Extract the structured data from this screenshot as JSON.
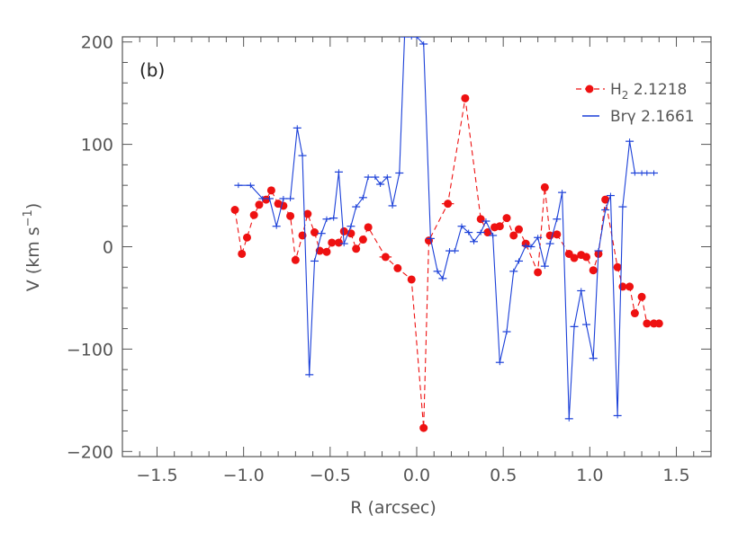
{
  "chart_data": {
    "type": "line",
    "panel_label": "(b)",
    "xlabel": "R (arcsec)",
    "ylabel": {
      "main": "V (km s",
      "sup": "−1",
      "close": ")"
    },
    "xlim": [
      -1.7,
      1.7
    ],
    "ylim": [
      -205,
      205
    ],
    "x_ticks": [
      -1.5,
      -1.0,
      -0.5,
      0.0,
      0.5,
      1.0,
      1.5
    ],
    "x_tick_labels": [
      "−1.5",
      "−1.0",
      "−0.5",
      "0.0",
      "0.5",
      "1.0",
      "1.5"
    ],
    "y_ticks": [
      -200,
      -100,
      0,
      100,
      200
    ],
    "y_tick_labels": [
      "−200",
      "−100",
      "0",
      "100",
      "200"
    ],
    "legend": [
      {
        "name": "H",
        "sub": "2",
        "rest": " 2.1218",
        "series": "h2"
      },
      {
        "name": "Brγ",
        "sub": "",
        "rest": " 2.1661",
        "series": "brg"
      }
    ],
    "series": [
      {
        "id": "h2",
        "name": "H2 2.1218",
        "color": "#ee1111",
        "style": "dashed",
        "marker": "circle",
        "x": [
          -1.05,
          -1.01,
          -0.98,
          -0.94,
          -0.91,
          -0.87,
          -0.84,
          -0.8,
          -0.77,
          -0.73,
          -0.7,
          -0.66,
          -0.63,
          -0.59,
          -0.56,
          -0.52,
          -0.49,
          -0.45,
          -0.42,
          -0.38,
          -0.35,
          -0.31,
          -0.28,
          -0.18,
          -0.11,
          -0.03,
          0.04,
          0.07,
          0.18,
          0.28,
          0.37,
          0.41,
          0.45,
          0.48,
          0.52,
          0.56,
          0.59,
          0.63,
          0.7,
          0.74,
          0.77,
          0.81,
          0.88,
          0.91,
          0.95,
          0.98,
          1.02,
          1.05,
          1.09,
          1.16,
          1.19,
          1.23,
          1.26,
          1.3,
          1.33,
          1.37,
          1.4
        ],
        "y": [
          36,
          -7,
          9,
          31,
          41,
          46,
          55,
          42,
          40,
          30,
          -13,
          11,
          32,
          14,
          -4,
          -5,
          4,
          4,
          15,
          13,
          -2,
          7,
          19,
          -10,
          -21,
          -32,
          -177,
          6,
          42,
          145,
          27,
          14,
          19,
          20,
          28,
          11,
          17,
          3,
          -25,
          58,
          11,
          12,
          -7,
          -11,
          -8,
          -10,
          -23,
          -7,
          46,
          -20,
          -39,
          -39,
          -65,
          -49,
          -75,
          -75,
          -75
        ],
        "x_err": [
          0,
          0,
          0,
          0,
          0,
          0,
          0,
          0,
          0,
          0,
          0,
          0,
          0,
          0,
          0,
          0,
          0,
          0,
          0,
          0,
          0,
          0,
          0,
          0.035,
          0,
          0,
          0,
          0,
          0.035,
          0,
          0,
          0,
          0,
          0,
          0,
          0,
          0,
          0,
          0,
          0,
          0,
          0,
          0,
          0,
          0,
          0,
          0,
          0,
          0,
          0,
          0,
          0,
          0,
          0,
          0,
          0,
          0
        ]
      },
      {
        "id": "brg",
        "name": "Brγ 2.1661",
        "color": "#1a3fd8",
        "style": "solid",
        "marker": "step",
        "x": [
          -1.03,
          -0.96,
          -0.89,
          -0.85,
          -0.81,
          -0.77,
          -0.73,
          -0.69,
          -0.66,
          -0.62,
          -0.59,
          -0.55,
          -0.52,
          -0.48,
          -0.45,
          -0.42,
          -0.38,
          -0.35,
          -0.31,
          -0.28,
          -0.24,
          -0.21,
          -0.17,
          -0.14,
          -0.1,
          -0.07,
          -0.03,
          0.0,
          0.04,
          0.08,
          0.12,
          0.15,
          0.19,
          0.22,
          0.26,
          0.3,
          0.33,
          0.37,
          0.4,
          0.44,
          0.48,
          0.52,
          0.56,
          0.59,
          0.63,
          0.66,
          0.7,
          0.74,
          0.77,
          0.81,
          0.84,
          0.88,
          0.91,
          0.95,
          0.98,
          1.02,
          1.05,
          1.09,
          1.12,
          1.16,
          1.19,
          1.23,
          1.26,
          1.3,
          1.33,
          1.37
        ],
        "y": [
          60,
          60,
          47,
          47,
          20,
          47,
          47,
          116,
          89,
          -125,
          -14,
          13,
          27,
          28,
          73,
          3,
          20,
          39,
          48,
          68,
          68,
          61,
          68,
          40,
          72,
          205,
          205,
          205,
          198,
          8,
          -24,
          -31,
          -4,
          -4,
          20,
          14,
          5,
          14,
          25,
          11,
          -113,
          -83,
          -24,
          -14,
          1,
          0,
          9,
          -19,
          3,
          27,
          53,
          -168,
          -78,
          -43,
          -76,
          -109,
          -4,
          36,
          50,
          -165,
          39,
          103,
          72,
          72,
          72,
          72
        ]
      }
    ]
  }
}
